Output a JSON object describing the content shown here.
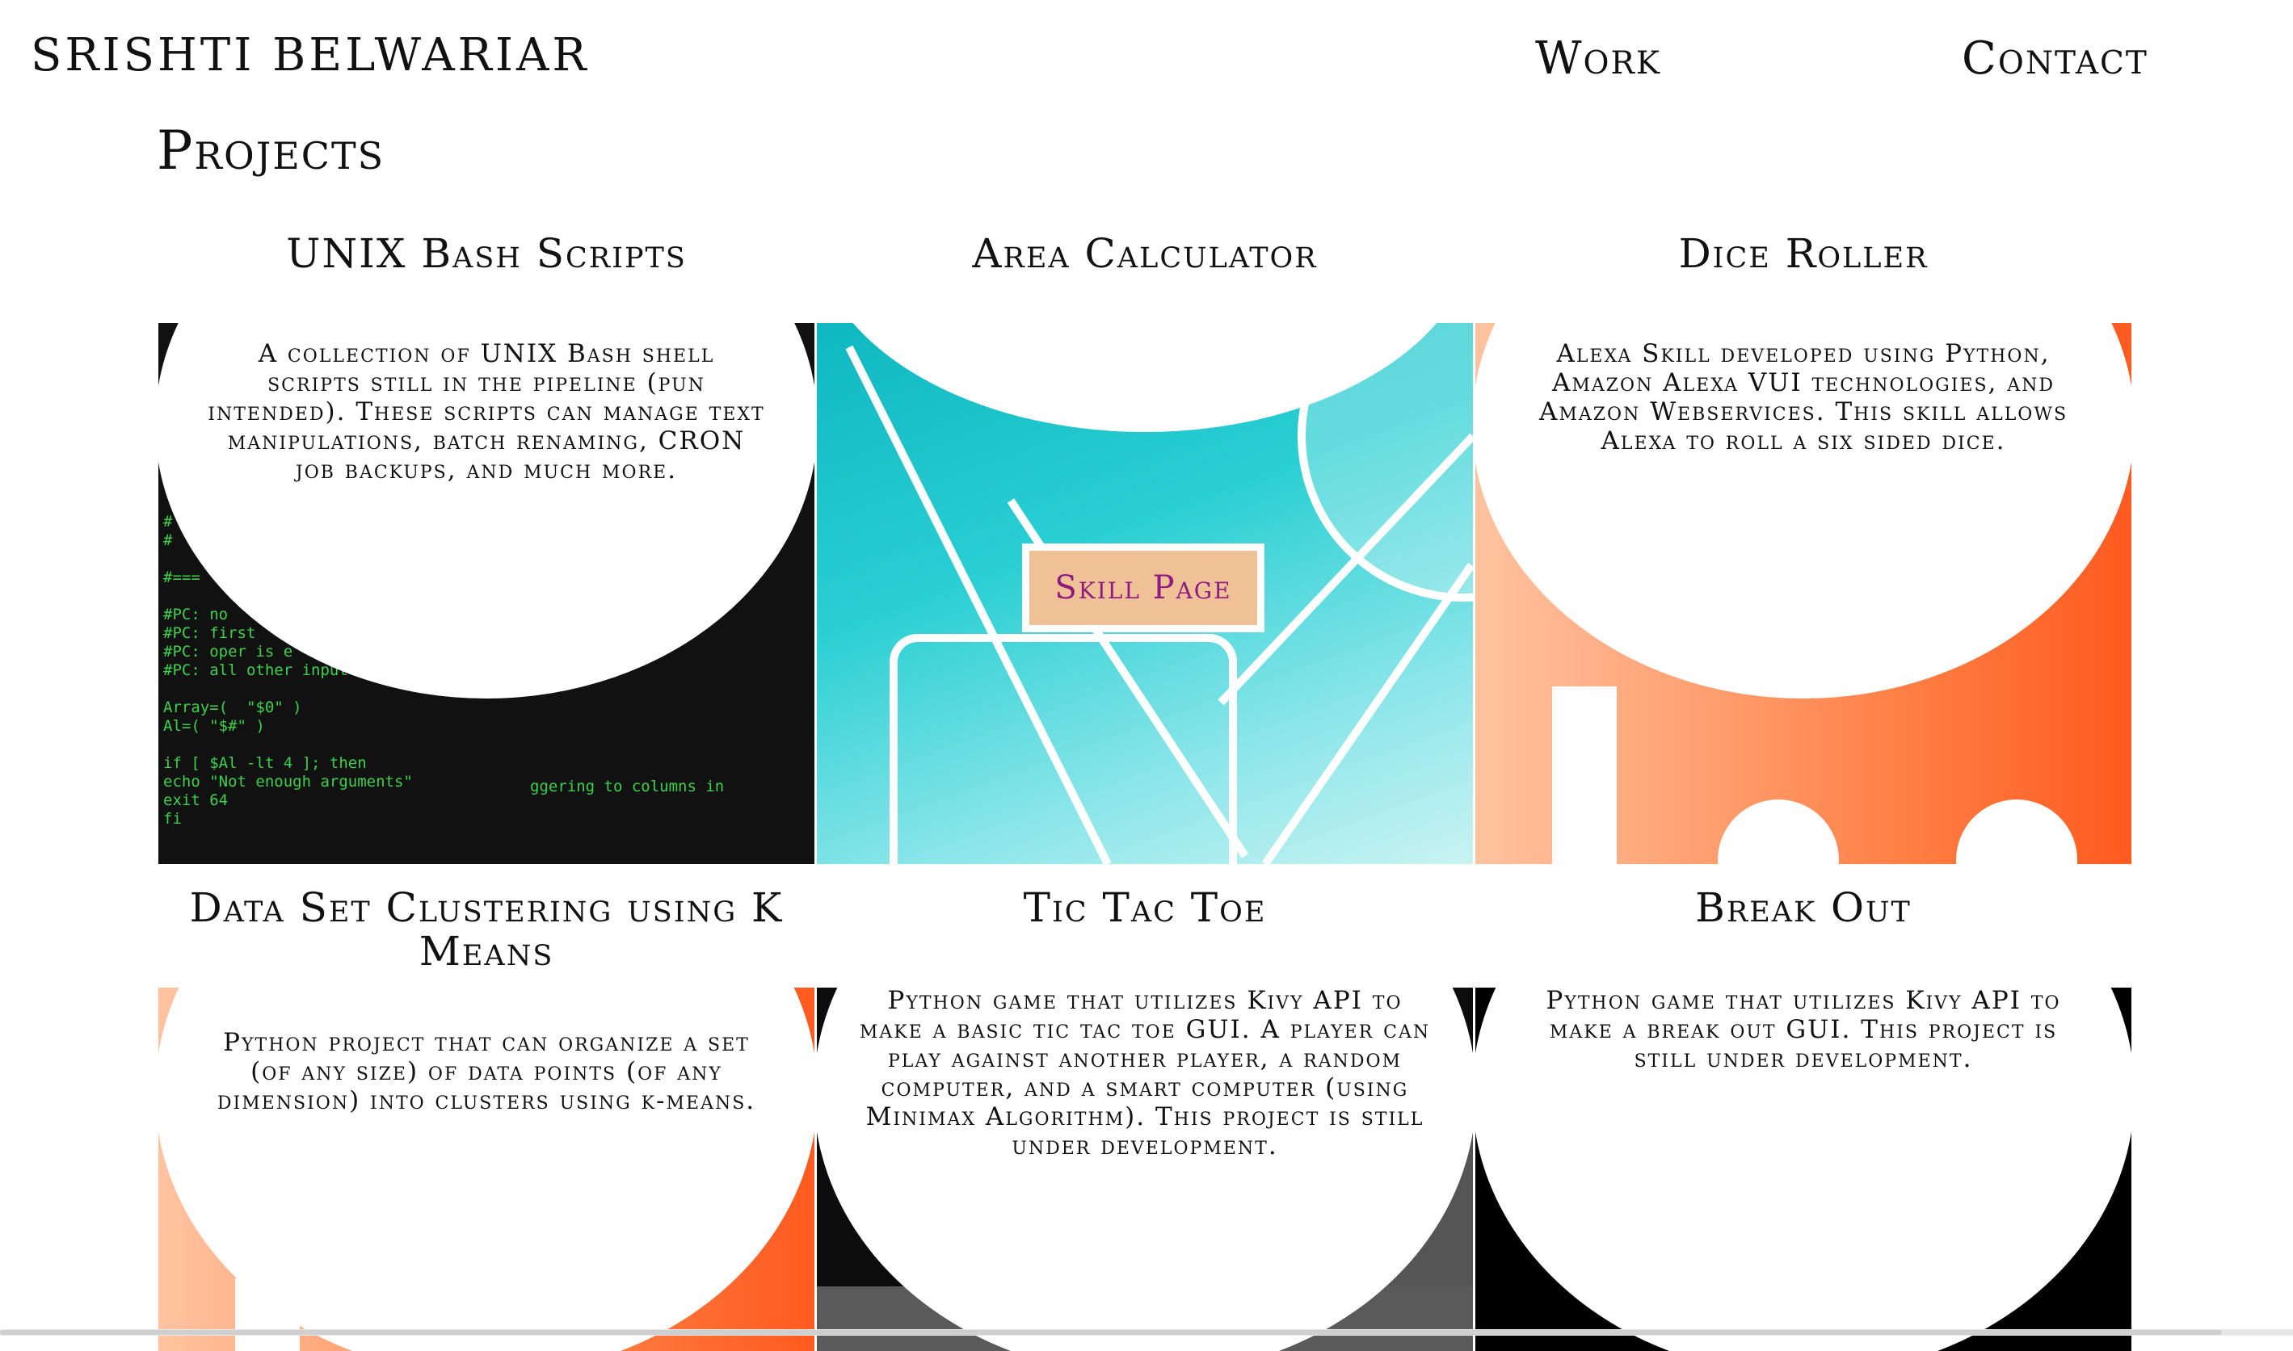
{
  "header": {
    "logo": "SRISHTI BELWARIAR",
    "nav": [
      "Work",
      "Contact"
    ]
  },
  "page_title": "Projects",
  "projects": [
    {
      "title": "UNIX Bash Scripts",
      "description": "A collection of UNIX Bash shell scripts still in the pipeline (pun intended). These scripts can manage text manipulations, batch renaming, CRON job backups, and much more."
    },
    {
      "title": "Area Calculator",
      "description": "",
      "button": "Skill Page"
    },
    {
      "title": "Dice Roller",
      "description": "Alexa Skill developed using Python, Amazon Alexa VUI technologies, and Amazon Webservices. This skill allows Alexa to roll a six sided dice."
    },
    {
      "title": "Data Set Clustering using K Means",
      "description": "Python project that can organize a set (of any size) of data points (of any dimension) into clusters using k-means."
    },
    {
      "title": "Tic Tac Toe",
      "description": "Python game that utilizes Kivy API to make a basic tic tac toe GUI. A player can play against another player, a random computer, and a smart computer (using Minimax Algorithm). This project is still under development."
    },
    {
      "title": "Break Out",
      "description": "Python game that utilizes Kivy API to make a break out GUI. This project is still under development."
    }
  ],
  "terminal_lines": [
    "#",
    "#",
    "",
    "#===",
    "",
    "#PC: no",
    "#PC: first",
    "#PC: oper is e",
    "#PC: all other input",
    "",
    "Array=(  \"$0\" )",
    "Al=( \"$#\" )",
    "",
    "if [ $Al -lt 4 ]; then",
    "echo \"Not enough arguments\"",
    "exit 64",
    "fi"
  ],
  "terminal_fragments": [
    "ggering to columns in"
  ],
  "colors": {
    "terminal_bg": "#111111",
    "terminal_text": "#3bd24a",
    "teal": "#1fc6cb",
    "orange": "#ff5a1f",
    "peach": "#ffc3a0",
    "button_bg": "#f0c096",
    "button_text": "#8e1b82"
  }
}
